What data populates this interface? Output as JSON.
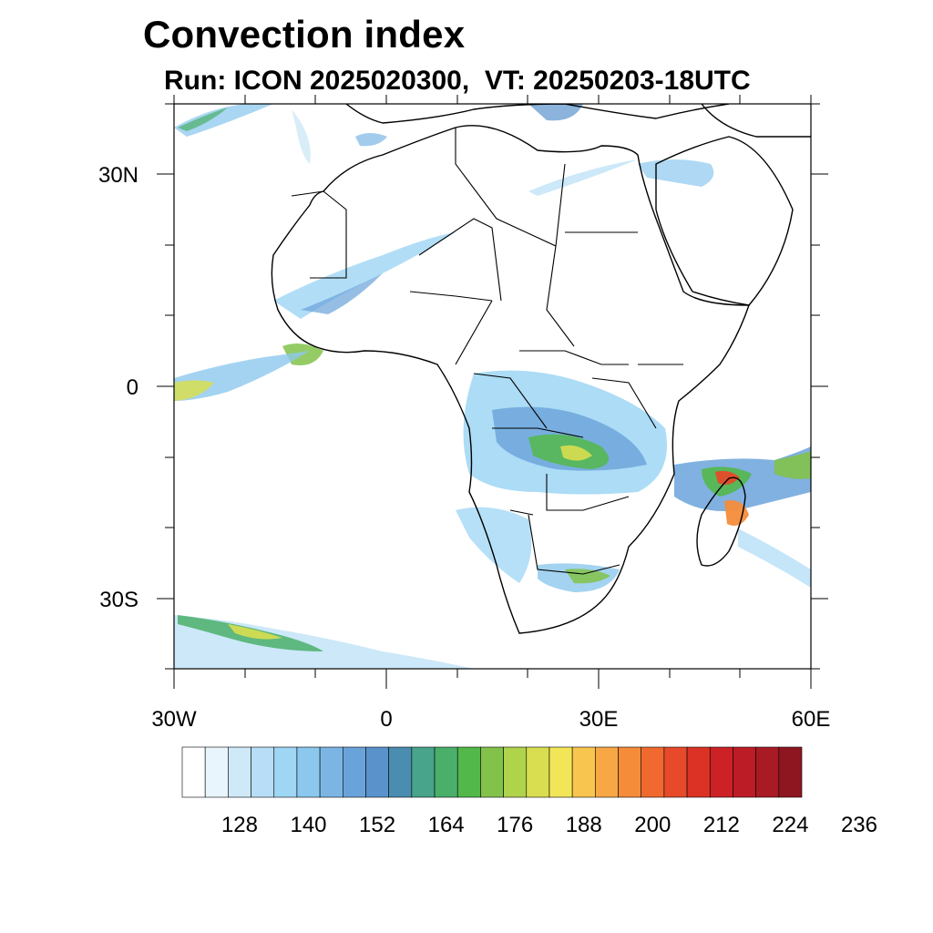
{
  "header": {
    "title": "Convection index",
    "subtitle": "Run: ICON 2025020300,  VT: 20250203-18UTC"
  },
  "map": {
    "lat_labels": [
      "30N",
      "0",
      "30S"
    ],
    "lon_labels": [
      "30W",
      "0",
      "30E",
      "60E"
    ],
    "lon_range": [
      -30,
      60
    ],
    "lat_range": [
      -40,
      40
    ]
  },
  "colorbar": {
    "colors": [
      "#ffffff",
      "#e9f5fc",
      "#cfe9f8",
      "#b7def6",
      "#9ed6f4",
      "#8cc8ee",
      "#7cb5e4",
      "#6aa3da",
      "#5a93cc",
      "#4a8db0",
      "#48a48a",
      "#4aaf6a",
      "#52b84a",
      "#82c24a",
      "#b0d34c",
      "#d8de50",
      "#f2e558",
      "#f8c64e",
      "#f7a845",
      "#f58c3a",
      "#f06a2f",
      "#e64a2a",
      "#dc3226",
      "#cc2226",
      "#bc1c26",
      "#a81a24",
      "#8e1620"
    ],
    "tick_labels": [
      "128",
      "140",
      "152",
      "164",
      "176",
      "188",
      "200",
      "212",
      "224",
      "236"
    ]
  }
}
